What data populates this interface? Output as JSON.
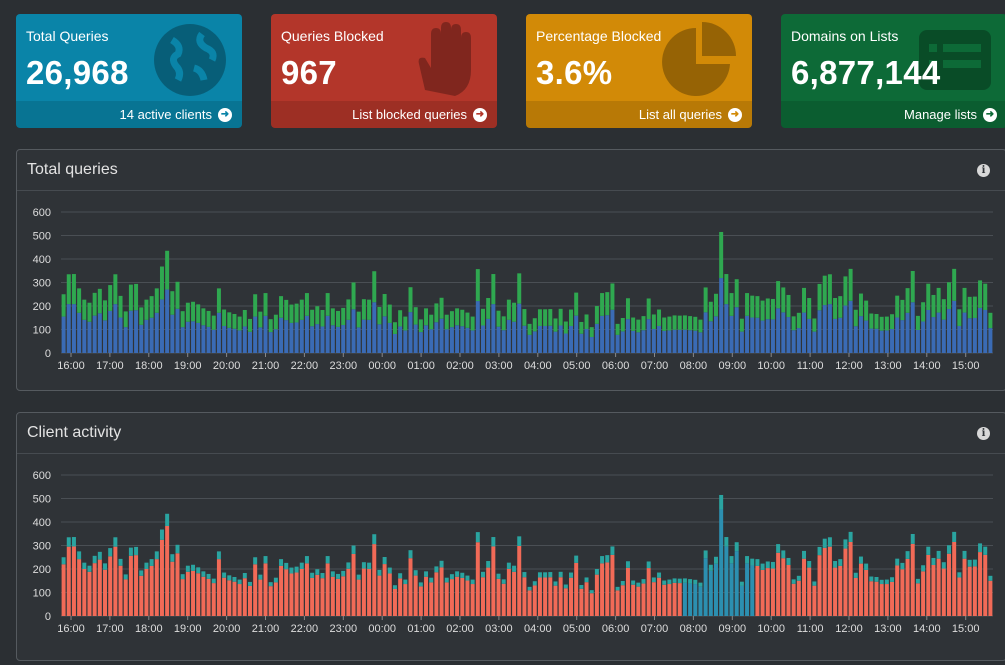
{
  "stats": [
    {
      "title": "Total Queries",
      "value": "26,968",
      "footer": "14 active clients",
      "color": "#0a84a8",
      "icon": "globe-icon"
    },
    {
      "title": "Queries Blocked",
      "value": "967",
      "footer": "List blocked queries",
      "color": "#b3362a",
      "icon": "hand-icon"
    },
    {
      "title": "Percentage Blocked",
      "value": "3.6%",
      "footer": "List all queries",
      "color": "#d28a07",
      "icon": "pie-chart-icon"
    },
    {
      "title": "Domains on Lists",
      "value": "6,877,144",
      "footer": "Manage lists",
      "color": "#0d6a37",
      "icon": "list-icon"
    }
  ],
  "panels": {
    "total_queries_title": "Total queries",
    "client_activity_title": "Client activity"
  },
  "colors": {
    "permitted": "#2fa850",
    "cached": "#3a6bb5",
    "blocked": "#9c3328",
    "client_main": "#f16a57",
    "client_2": "#2c8fb0",
    "client_3": "#2aa4a0",
    "client_4": "#e89a1c",
    "client_5": "#2fa850"
  },
  "chart_data": [
    {
      "type": "bar",
      "title": "Total queries",
      "x_ticks": [
        "16:00",
        "17:00",
        "18:00",
        "19:00",
        "20:00",
        "21:00",
        "22:00",
        "23:00",
        "00:00",
        "01:00",
        "02:00",
        "03:00",
        "04:00",
        "05:00",
        "06:00",
        "07:00",
        "08:00",
        "09:00",
        "10:00",
        "11:00",
        "12:00",
        "13:00",
        "14:00",
        "15:00"
      ],
      "ylim": [
        0,
        600
      ],
      "y_ticks": [
        0,
        100,
        200,
        300,
        400,
        500,
        600
      ],
      "series": [
        {
          "stack": "total",
          "values": [
            250,
            335,
            336,
            275,
            227,
            214,
            256,
            273,
            224,
            289,
            335,
            243,
            177,
            291,
            294,
            194,
            227,
            242,
            275,
            368,
            435,
            263,
            303,
            178,
            214,
            218,
            207,
            190,
            179,
            159,
            275,
            185,
            173,
            166,
            155,
            183,
            145,
            250,
            176,
            255,
            144,
            163,
            242,
            226,
            206,
            210,
            227,
            255,
            184,
            199,
            183,
            255,
            190,
            179,
            192,
            228,
            300,
            176,
            229,
            227,
            348,
            196,
            251,
            206,
            131,
            182,
            155,
            280,
            195,
            143,
            190,
            163,
            211,
            235,
            163,
            178,
            190,
            184,
            172,
            155,
            357,
            188,
            234,
            336,
            180,
            156,
            227,
            214,
            339,
            187,
            124,
            148,
            186,
            186,
            187,
            147,
            188,
            134,
            185,
            257,
            132,
            164,
            110,
            200,
            255,
            259,
            296,
            124,
            149,
            233,
            151,
            142,
            157,
            232,
            164,
            185,
            151,
            155,
            160,
            159,
            160,
            157,
            154,
            142,
            279,
            218,
            252,
            515,
            336,
            255,
            314,
            146,
            255,
            244,
            242,
            223,
            232,
            230,
            306,
            279,
            247,
            156,
            171,
            277,
            234,
            147,
            294,
            329,
            335,
            234,
            242,
            326,
            358,
            184,
            253,
            223,
            168,
            166,
            154,
            155,
            165,
            244,
            226,
            276,
            349,
            158,
            216,
            295,
            247,
            277,
            229,
            301,
            358,
            186,
            277,
            239,
            240,
            309,
            295,
            171
          ]
        },
        {
          "stack": "blocked",
          "values": [
            0,
            0,
            0,
            0,
            0,
            0,
            0,
            0,
            0,
            0,
            0,
            0,
            0,
            0,
            0,
            0,
            0,
            0,
            0,
            0,
            0,
            0,
            0,
            0,
            0,
            0,
            0,
            0,
            0,
            0,
            0,
            0,
            0,
            0,
            0,
            0,
            0,
            0,
            0,
            0,
            0,
            0,
            0,
            0,
            0,
            0,
            0,
            0,
            0,
            0,
            0,
            0,
            0,
            0,
            0,
            0,
            0,
            0,
            0,
            0,
            0,
            0,
            0,
            0,
            0,
            0,
            0,
            0,
            0,
            0,
            0,
            0,
            0,
            0,
            0,
            0,
            0,
            0,
            0,
            0,
            0,
            0,
            0,
            0,
            0,
            0,
            0,
            0,
            0,
            0,
            0,
            0,
            0,
            0,
            0,
            0,
            0,
            0,
            0,
            0,
            0,
            0,
            0,
            0,
            0,
            0,
            0,
            0,
            0,
            0,
            0,
            0,
            0,
            0,
            0,
            0,
            0,
            0,
            0,
            0,
            0,
            0,
            0,
            0,
            0,
            0,
            0,
            0,
            0,
            0,
            0,
            0,
            0,
            0,
            0,
            0,
            0,
            0,
            0,
            0,
            0,
            0,
            0,
            0,
            0,
            0,
            0,
            0,
            0,
            0,
            0,
            0,
            0,
            0,
            0,
            0,
            0,
            0,
            0,
            0,
            0,
            0,
            0,
            0,
            0,
            0,
            0,
            0,
            0,
            0,
            0,
            0,
            0,
            0,
            0,
            0,
            0,
            0,
            0,
            0
          ]
        }
      ]
    },
    {
      "type": "bar",
      "title": "Client activity",
      "x_ticks": [
        "16:00",
        "17:00",
        "18:00",
        "19:00",
        "20:00",
        "21:00",
        "22:00",
        "23:00",
        "00:00",
        "01:00",
        "02:00",
        "03:00",
        "04:00",
        "05:00",
        "06:00",
        "07:00",
        "08:00",
        "09:00",
        "10:00",
        "11:00",
        "12:00",
        "13:00",
        "14:00",
        "15:00"
      ],
      "ylim": [
        0,
        600
      ],
      "y_ticks": [
        0,
        100,
        200,
        300,
        400,
        500,
        600
      ]
    }
  ]
}
